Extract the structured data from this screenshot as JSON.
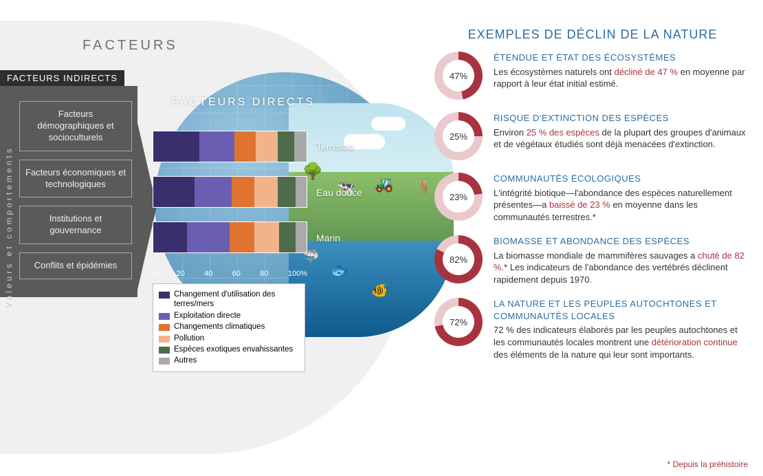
{
  "colors": {
    "blue": "#2a6ca3",
    "red": "#a8333e",
    "donut_bg": "#e9c9cc",
    "grey_panel": "#5a5a5a",
    "grey_dark": "#2e2e2e"
  },
  "left": {
    "facteurs_title": "FACTEURS",
    "sidebar_label": "Valeurs et comportements",
    "indirect_header": "FACTEURS INDIRECTS",
    "indirect_items": [
      "Facteurs démographiques et socioculturels",
      "Facteurs économiques et technologiques",
      "Institutions et gouvernance",
      "Conflits et épidémies"
    ]
  },
  "direct": {
    "title": "FACTEURS DIRECTS",
    "ecosystems": [
      {
        "label": "Terrestre",
        "segments": [
          30,
          23,
          14,
          14,
          11,
          8
        ]
      },
      {
        "label": "Eau douce",
        "segments": [
          27,
          24,
          15,
          15,
          12,
          7
        ]
      },
      {
        "label": "Marin",
        "segments": [
          22,
          28,
          16,
          16,
          11,
          7
        ]
      }
    ],
    "axis": [
      "0",
      "20",
      "40",
      "60",
      "80",
      "100%"
    ],
    "legend": [
      {
        "color": "#3b2e6f",
        "label": "Changement d'utilisation des terres/mers"
      },
      {
        "color": "#6a5eb3",
        "label": "Exploitation directe"
      },
      {
        "color": "#e0732f",
        "label": "Changements climatiques"
      },
      {
        "color": "#f2b38a",
        "label": "Pollution"
      },
      {
        "color": "#4e6b4a",
        "label": "Espèces exotiques envahissantes"
      },
      {
        "color": "#a9a9a9",
        "label": "Autres"
      }
    ],
    "seg_colors": [
      "#3b2e6f",
      "#6a5eb3",
      "#e0732f",
      "#f2b38a",
      "#4e6b4a",
      "#a9a9a9"
    ]
  },
  "right": {
    "title": "EXEMPLES DE DÉCLIN DE LA NATURE",
    "items": [
      {
        "pct": 47,
        "pct_label": "47%",
        "heading": "ÉTENDUE ET ÉTAT DES ÉCOSYSTÈMES",
        "body_pre": "Les écosystèmes naturels ont ",
        "body_red": "décliné de 47 %",
        "body_post": " en moyenne par rapport à leur état initial estimé."
      },
      {
        "pct": 25,
        "pct_label": "25%",
        "heading": "RISQUE D'EXTINCTION DES ESPÈCES",
        "body_pre": "Environ ",
        "body_red": "25 % des espèces",
        "body_post": " de la plupart des groupes d'animaux et de végétaux étudiés sont déjà menacées d'extinction."
      },
      {
        "pct": 23,
        "pct_label": "23%",
        "heading": "COMMUNAUTÉS ÉCOLOGIQUES",
        "body_pre": "L'intégrité biotique—l'abondance des espèces naturellement présentes—a ",
        "body_red": "baissé de 23 %",
        "body_post": " en moyenne dans les communautés terrestres.*"
      },
      {
        "pct": 82,
        "pct_label": "82%",
        "heading": "BIOMASSE ET ABONDANCE DES ESPÈCES",
        "body_pre": "La biomasse mondiale de mammifères sauvages a ",
        "body_red": "chuté de 82 %.",
        "body_post": "* Les indicateurs de l'abondance des vertébrés déclinent rapidement depuis 1970."
      },
      {
        "pct": 72,
        "pct_label": "72%",
        "heading": "LA NATURE ET LES PEUPLES AUTOCHTONES ET COMMUNAUTÉS LOCALES",
        "body_pre": "72 % des indicateurs élaborés par les peuples autochtones et les communautés locales montrent une ",
        "body_red": "détérioration continue",
        "body_post": " des éléments de la nature qui leur sont importants."
      }
    ],
    "footnote": "* Depuis la préhistoire"
  }
}
